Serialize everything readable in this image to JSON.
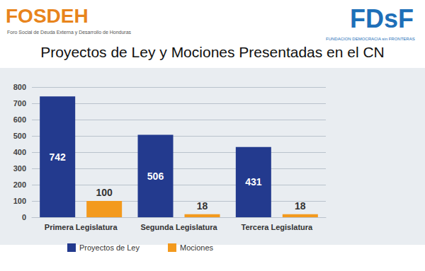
{
  "chart_data": {
    "type": "bar",
    "title": "Proyectos de Ley y Mociones Presentadas en el CN",
    "annotations": [
      "FOSDEH",
      "Foro Social de Deuda Externa y Desarrollo de Honduras",
      "FDsF",
      "FUNDACION DEMOCRACIA sin FRONTERAS"
    ],
    "categories": [
      "Primera Legislatura",
      "Segunda Legislatura",
      "Tercera Legislatura"
    ],
    "series": [
      {
        "name": "Proyectos de Ley",
        "color": "#233a8e",
        "values": [
          742,
          506,
          431
        ]
      },
      {
        "name": "Mociones",
        "color": "#f39a1e",
        "values": [
          100,
          18,
          18
        ]
      }
    ],
    "ylim": [
      0,
      800
    ],
    "yticks": [
      0,
      100,
      200,
      300,
      400,
      500,
      600,
      700,
      800
    ],
    "grid": true,
    "legend": "bottom",
    "data_labels": true
  }
}
